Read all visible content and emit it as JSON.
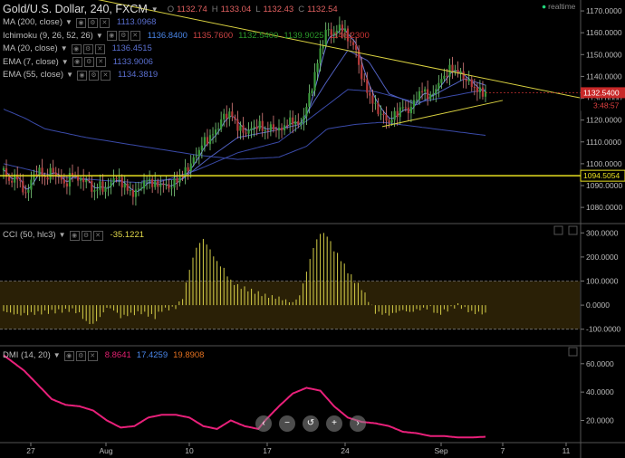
{
  "header": {
    "title": "Gold/U.S. Dollar, 240, FXCM",
    "ohlc": [
      {
        "label": "O",
        "value": "1132.74"
      },
      {
        "label": "H",
        "value": "1133.04"
      },
      {
        "label": "L",
        "value": "1132.43"
      },
      {
        "label": "C",
        "value": "1132.54"
      }
    ],
    "realtime": "realtime"
  },
  "indicators": [
    {
      "name": "MA (200, close)",
      "values": [
        "1113.0968"
      ],
      "colors": [
        "#5a6fd0"
      ]
    },
    {
      "name": "Ichimoku (9, 26, 52, 26)",
      "values": [
        "1136.8400",
        "1135.7600",
        "1132.5400",
        "1139.9025",
        "1146.2300"
      ],
      "colors": [
        "#4a86e8",
        "#cc4444",
        "#2a9a2a",
        "#2a9a2a",
        "#cc3333"
      ]
    },
    {
      "name": "MA (20, close)",
      "values": [
        "1136.4515"
      ],
      "colors": [
        "#5a6fd0"
      ]
    },
    {
      "name": "EMA (7, close)",
      "values": [
        "1133.9006"
      ],
      "colors": [
        "#5a6fd0"
      ]
    },
    {
      "name": "EMA (55, close)",
      "values": [
        "1134.3819"
      ],
      "colors": [
        "#5a6fd0"
      ]
    }
  ],
  "cci": {
    "name": "CCI (50, hlc3)",
    "value": "-35.1221",
    "color": "#e0d84a"
  },
  "dmi": {
    "name": "DMI (14, 20)",
    "values": [
      "8.8641",
      "17.4259",
      "19.8908"
    ],
    "colors": [
      "#e0206f",
      "#4a86e8",
      "#e07020"
    ]
  },
  "price_axis": {
    "ticks": [
      "1170.0000",
      "1160.0000",
      "1150.0000",
      "1140.0000",
      "1130.0000",
      "1120.0000",
      "1110.0000",
      "1100.0000",
      "1090.0000",
      "1080.0000"
    ],
    "last_price": "1132.5400",
    "countdown": "3:48:57",
    "hline_price": "1094.5054"
  },
  "cci_axis": {
    "ticks": [
      "300.0000",
      "200.0000",
      "100.0000",
      "0.0000",
      "-100.0000"
    ]
  },
  "dmi_axis": {
    "ticks": [
      "60.0000",
      "40.0000",
      "20.0000"
    ]
  },
  "time_axis": {
    "ticks": [
      "27",
      "Aug",
      "10",
      "17",
      "24",
      "Sep",
      "7",
      "11"
    ]
  },
  "nav_buttons": {
    "back": "‹",
    "minus": "−",
    "reset": "↺",
    "plus": "+",
    "forward": "›"
  },
  "chart_data": [
    {
      "type": "candlestick",
      "title": "Gold/U.S. Dollar, 240, FXCM",
      "ylim": [
        1073,
        1175
      ],
      "x_ticks": [
        "27",
        "Aug",
        "10",
        "17",
        "24",
        "Sep",
        "7",
        "11"
      ],
      "y_ticks": [
        1170,
        1160,
        1150,
        1140,
        1130,
        1120,
        1110,
        1100,
        1090,
        1080
      ],
      "last_price": 1132.54,
      "horizontal_line": 1094.5054,
      "price_path": [
        [
          0,
          1097
        ],
        [
          5,
          1091
        ],
        [
          10,
          1095
        ],
        [
          15,
          1085
        ],
        [
          20,
          1092
        ],
        [
          25,
          1098
        ],
        [
          30,
          1093
        ],
        [
          35,
          1097
        ],
        [
          40,
          1094
        ],
        [
          45,
          1090
        ],
        [
          50,
          1096
        ],
        [
          55,
          1092
        ],
        [
          60,
          1093
        ],
        [
          65,
          1087
        ],
        [
          70,
          1090
        ],
        [
          75,
          1088
        ],
        [
          80,
          1094
        ],
        [
          85,
          1092
        ],
        [
          90,
          1088
        ],
        [
          95,
          1086
        ],
        [
          100,
          1090
        ],
        [
          105,
          1093
        ],
        [
          110,
          1090
        ],
        [
          115,
          1091
        ],
        [
          120,
          1089
        ],
        [
          125,
          1092
        ],
        [
          130,
          1095
        ],
        [
          135,
          1099
        ],
        [
          140,
          1104
        ],
        [
          145,
          1110
        ],
        [
          150,
          1112
        ],
        [
          155,
          1116
        ],
        [
          160,
          1122
        ],
        [
          165,
          1123
        ],
        [
          170,
          1117
        ],
        [
          175,
          1114
        ],
        [
          180,
          1116
        ],
        [
          185,
          1118
        ],
        [
          190,
          1115
        ],
        [
          195,
          1117
        ],
        [
          200,
          1115
        ],
        [
          205,
          1118
        ],
        [
          210,
          1120
        ],
        [
          215,
          1117
        ],
        [
          220,
          1126
        ],
        [
          225,
          1138
        ],
        [
          230,
          1152
        ],
        [
          235,
          1162
        ],
        [
          240,
          1159
        ],
        [
          245,
          1164
        ],
        [
          250,
          1157
        ],
        [
          255,
          1154
        ],
        [
          260,
          1140
        ],
        [
          265,
          1132
        ],
        [
          270,
          1126
        ],
        [
          275,
          1122
        ],
        [
          280,
          1119
        ],
        [
          285,
          1123
        ],
        [
          290,
          1126
        ],
        [
          295,
          1124
        ],
        [
          300,
          1131
        ],
        [
          305,
          1134
        ],
        [
          310,
          1130
        ],
        [
          315,
          1136
        ],
        [
          320,
          1140
        ],
        [
          325,
          1144
        ],
        [
          330,
          1142
        ],
        [
          335,
          1139
        ],
        [
          340,
          1136
        ],
        [
          345,
          1133
        ],
        [
          350,
          1132.5
        ]
      ],
      "ma200_path": [
        [
          0,
          1125
        ],
        [
          15,
          1121
        ],
        [
          30,
          1116
        ],
        [
          60,
          1112
        ],
        [
          100,
          1108
        ],
        [
          140,
          1104
        ],
        [
          170,
          1102
        ],
        [
          200,
          1103
        ],
        [
          220,
          1108
        ],
        [
          235,
          1116
        ],
        [
          255,
          1118
        ],
        [
          275,
          1119
        ],
        [
          300,
          1117
        ],
        [
          325,
          1115
        ],
        [
          350,
          1113
        ]
      ],
      "ema55_path": [
        [
          0,
          1100
        ],
        [
          40,
          1094
        ],
        [
          80,
          1092
        ],
        [
          110,
          1091
        ],
        [
          140,
          1097
        ],
        [
          170,
          1105
        ],
        [
          200,
          1110
        ],
        [
          225,
          1122
        ],
        [
          250,
          1134
        ],
        [
          270,
          1133
        ],
        [
          300,
          1128
        ],
        [
          325,
          1131
        ],
        [
          350,
          1134
        ]
      ],
      "ma20_path": [
        [
          100,
          1092
        ],
        [
          130,
          1093
        ],
        [
          150,
          1103
        ],
        [
          170,
          1112
        ],
        [
          195,
          1115
        ],
        [
          215,
          1118
        ],
        [
          235,
          1138
        ],
        [
          250,
          1152
        ],
        [
          265,
          1147
        ],
        [
          280,
          1132
        ],
        [
          300,
          1127
        ],
        [
          320,
          1134
        ],
        [
          335,
          1139
        ],
        [
          350,
          1136
        ]
      ],
      "trendline_upper": [
        [
          0,
          1184
        ],
        [
          350,
          1139
        ]
      ],
      "trendline_lower": [
        [
          275,
          1117
        ],
        [
          350,
          1127
        ]
      ]
    },
    {
      "type": "bar",
      "title": "CCI (50, hlc3)",
      "ylim": [
        -165,
        335
      ],
      "y_ticks": [
        300,
        200,
        100,
        0,
        -100
      ],
      "band": [
        -100,
        100
      ],
      "value_path": [
        [
          0,
          -25
        ],
        [
          10,
          -40
        ],
        [
          20,
          -35
        ],
        [
          30,
          -30
        ],
        [
          40,
          -25
        ],
        [
          50,
          -20
        ],
        [
          55,
          -35
        ],
        [
          60,
          -70
        ],
        [
          65,
          -80
        ],
        [
          70,
          -50
        ],
        [
          75,
          -10
        ],
        [
          80,
          -20
        ],
        [
          85,
          -50
        ],
        [
          90,
          -40
        ],
        [
          100,
          -30
        ],
        [
          110,
          -50
        ],
        [
          115,
          -20
        ],
        [
          120,
          -15
        ],
        [
          125,
          -10
        ],
        [
          130,
          30
        ],
        [
          135,
          150
        ],
        [
          140,
          240
        ],
        [
          145,
          275
        ],
        [
          150,
          230
        ],
        [
          155,
          180
        ],
        [
          160,
          150
        ],
        [
          165,
          100
        ],
        [
          170,
          80
        ],
        [
          180,
          60
        ],
        [
          190,
          40
        ],
        [
          200,
          30
        ],
        [
          210,
          10
        ],
        [
          215,
          40
        ],
        [
          220,
          140
        ],
        [
          225,
          240
        ],
        [
          230,
          300
        ],
        [
          235,
          290
        ],
        [
          240,
          230
        ],
        [
          245,
          190
        ],
        [
          250,
          140
        ],
        [
          255,
          100
        ],
        [
          260,
          70
        ],
        [
          265,
          20
        ],
        [
          270,
          -30
        ],
        [
          280,
          -40
        ],
        [
          290,
          -20
        ],
        [
          295,
          -30
        ],
        [
          300,
          -20
        ],
        [
          310,
          -10
        ],
        [
          315,
          -40
        ],
        [
          320,
          -25
        ],
        [
          330,
          0
        ],
        [
          340,
          -30
        ],
        [
          350,
          -35
        ]
      ]
    },
    {
      "type": "line",
      "title": "DMI (14, 20)",
      "ylim": [
        5,
        72
      ],
      "y_ticks": [
        60,
        40,
        20
      ],
      "adx_path": [
        [
          0,
          66
        ],
        [
          15,
          55
        ],
        [
          25,
          45
        ],
        [
          35,
          35
        ],
        [
          45,
          31
        ],
        [
          55,
          30
        ],
        [
          65,
          27
        ],
        [
          75,
          20
        ],
        [
          85,
          15
        ],
        [
          95,
          16
        ],
        [
          105,
          22
        ],
        [
          115,
          24
        ],
        [
          125,
          24
        ],
        [
          135,
          22
        ],
        [
          145,
          16
        ],
        [
          155,
          14
        ],
        [
          165,
          20
        ],
        [
          175,
          16
        ],
        [
          185,
          14
        ],
        [
          190,
          20
        ],
        [
          200,
          30
        ],
        [
          210,
          39
        ],
        [
          220,
          43
        ],
        [
          230,
          41
        ],
        [
          240,
          30
        ],
        [
          250,
          22
        ],
        [
          260,
          19
        ],
        [
          270,
          18
        ],
        [
          280,
          16
        ],
        [
          290,
          12
        ],
        [
          300,
          11
        ],
        [
          310,
          9
        ],
        [
          320,
          9
        ],
        [
          330,
          8
        ],
        [
          340,
          8
        ],
        [
          350,
          8.5
        ]
      ]
    }
  ]
}
